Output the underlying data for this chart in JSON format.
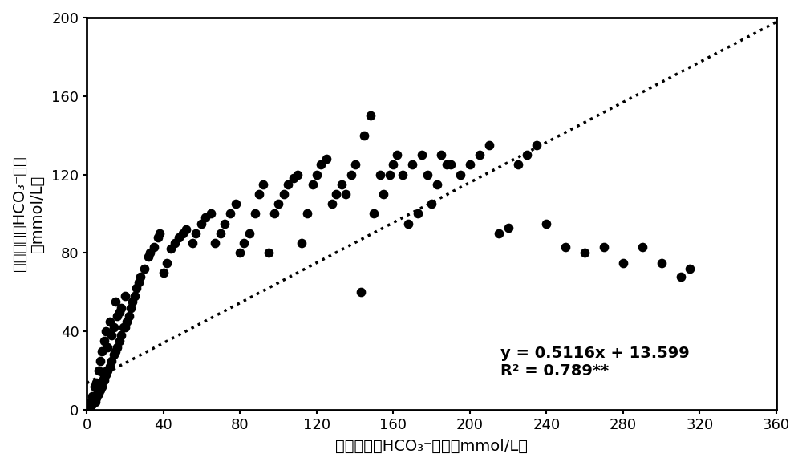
{
  "x_data": [
    0.5,
    1,
    1.5,
    2,
    2,
    2.5,
    3,
    3,
    3.5,
    4,
    4,
    4.5,
    5,
    5,
    5.5,
    6,
    6,
    6.5,
    7,
    7,
    7.5,
    8,
    8,
    8.5,
    9,
    9,
    9.5,
    10,
    10,
    10.5,
    11,
    11,
    12,
    12,
    13,
    13,
    14,
    14,
    15,
    15,
    16,
    16,
    17,
    17,
    18,
    18,
    19,
    20,
    20,
    21,
    22,
    23,
    24,
    25,
    26,
    27,
    28,
    30,
    32,
    33,
    35,
    37,
    38,
    40,
    42,
    44,
    46,
    48,
    50,
    52,
    55,
    57,
    60,
    62,
    65,
    67,
    70,
    72,
    75,
    78,
    80,
    82,
    85,
    88,
    90,
    92,
    95,
    98,
    100,
    103,
    105,
    108,
    110,
    112,
    115,
    118,
    120,
    122,
    125,
    128,
    130,
    133,
    135,
    138,
    140,
    143,
    145,
    148,
    150,
    153,
    155,
    158,
    160,
    162,
    165,
    168,
    170,
    173,
    175,
    178,
    180,
    183,
    185,
    188,
    190,
    195,
    200,
    205,
    210,
    215,
    220,
    225,
    230,
    235,
    240,
    250,
    260,
    270,
    280,
    290,
    300,
    310,
    315
  ],
  "y_data": [
    1,
    2,
    1,
    2,
    4,
    3,
    3,
    7,
    5,
    5,
    12,
    4,
    6,
    14,
    8,
    8,
    20,
    10,
    10,
    25,
    12,
    12,
    30,
    15,
    15,
    35,
    18,
    18,
    40,
    20,
    20,
    32,
    22,
    45,
    25,
    38,
    28,
    42,
    30,
    55,
    32,
    48,
    35,
    50,
    38,
    52,
    42,
    42,
    58,
    45,
    48,
    52,
    55,
    58,
    62,
    65,
    68,
    72,
    78,
    80,
    83,
    88,
    90,
    70,
    75,
    82,
    85,
    88,
    90,
    92,
    85,
    90,
    95,
    98,
    100,
    85,
    90,
    95,
    100,
    105,
    80,
    85,
    90,
    100,
    110,
    115,
    80,
    100,
    105,
    110,
    115,
    118,
    120,
    85,
    100,
    115,
    120,
    125,
    128,
    105,
    110,
    115,
    110,
    120,
    125,
    60,
    140,
    150,
    100,
    120,
    110,
    120,
    125,
    130,
    120,
    95,
    125,
    100,
    130,
    120,
    105,
    115,
    130,
    125,
    125,
    120,
    125,
    130,
    135,
    90,
    93,
    125,
    130,
    135,
    95,
    83,
    80,
    83,
    75,
    83,
    75,
    68,
    72
  ],
  "equation": "y = 0.5116x + 13.599",
  "r_squared": "R² = 0.789**",
  "slope": 0.5116,
  "intercept": 13.599,
  "xlim": [
    0,
    360
  ],
  "ylim": [
    0,
    200
  ],
  "xticks": [
    0,
    40,
    80,
    120,
    160,
    200,
    240,
    280,
    320,
    360
  ],
  "yticks": [
    0,
    40,
    80,
    120,
    160,
    200
  ],
  "xlabel": "实测可溶性HCO₃⁻含量（mmol/L）",
  "ylabel": "预测可溶性HCO₃⁻含量\n（mmol/L）",
  "dot_color": "#000000",
  "dot_size": 55,
  "line_color": "#000000",
  "bg_color": "#ffffff",
  "font_size_label": 14,
  "font_size_tick": 13,
  "font_size_annot": 14
}
